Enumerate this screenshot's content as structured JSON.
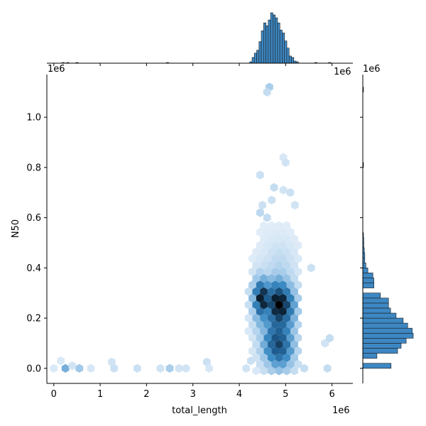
{
  "chart_data": {
    "type": "hexbin_joint",
    "xlabel": "total_length",
    "ylabel": "N50",
    "x_offset": "1e6",
    "y_offset": "1e6",
    "x_offset_top": "1e6",
    "x_offset_corner": "1e6",
    "xlim": [
      -0.15,
      6.45
    ],
    "ylim": [
      -0.06,
      1.17
    ],
    "x_ticks": [
      0,
      1,
      2,
      3,
      4,
      5,
      6
    ],
    "y_ticks": [
      0.0,
      0.2,
      0.4,
      0.6,
      0.8,
      1.0
    ],
    "x_tick_labels": [
      "0",
      "1",
      "2",
      "3",
      "4",
      "5",
      "6"
    ],
    "y_tick_labels": [
      "0.0",
      "0.2",
      "0.4",
      "0.6",
      "0.8",
      "1.0"
    ],
    "colors": {
      "bar": "#3d87c2",
      "bar_edge": "#1a1a1a",
      "hex_light": "#e8f1fa",
      "hex_mid": "#3a8ac4",
      "hex_dark": "#000000",
      "axis": "#000000"
    },
    "marginal_x_hist": {
      "bin_width": 0.05,
      "max_count": 70,
      "bins": [
        {
          "x": 0.2,
          "count": 1
        },
        {
          "x": 0.3,
          "count": 1
        },
        {
          "x": 0.5,
          "count": 1
        },
        {
          "x": 2.45,
          "count": 1
        },
        {
          "x": 4.25,
          "count": 2
        },
        {
          "x": 4.3,
          "count": 8
        },
        {
          "x": 4.35,
          "count": 14
        },
        {
          "x": 4.4,
          "count": 18
        },
        {
          "x": 4.45,
          "count": 30
        },
        {
          "x": 4.5,
          "count": 45
        },
        {
          "x": 4.55,
          "count": 56
        },
        {
          "x": 4.6,
          "count": 52
        },
        {
          "x": 4.65,
          "count": 60
        },
        {
          "x": 4.7,
          "count": 70
        },
        {
          "x": 4.75,
          "count": 67
        },
        {
          "x": 4.8,
          "count": 63
        },
        {
          "x": 4.85,
          "count": 56
        },
        {
          "x": 4.9,
          "count": 46
        },
        {
          "x": 4.95,
          "count": 42
        },
        {
          "x": 5.0,
          "count": 31
        },
        {
          "x": 5.05,
          "count": 21
        },
        {
          "x": 5.1,
          "count": 10
        },
        {
          "x": 5.15,
          "count": 8
        },
        {
          "x": 5.2,
          "count": 3
        },
        {
          "x": 5.25,
          "count": 2
        },
        {
          "x": 5.65,
          "count": 1
        },
        {
          "x": 5.95,
          "count": 1
        }
      ]
    },
    "marginal_y_hist": {
      "bin_width": 0.02,
      "max_count": 100,
      "bins": [
        {
          "y": 0.0,
          "count": 56
        },
        {
          "y": 0.04,
          "count": 28
        },
        {
          "y": 0.06,
          "count": 69
        },
        {
          "y": 0.08,
          "count": 76
        },
        {
          "y": 0.1,
          "count": 86
        },
        {
          "y": 0.12,
          "count": 100
        },
        {
          "y": 0.14,
          "count": 98
        },
        {
          "y": 0.16,
          "count": 89
        },
        {
          "y": 0.18,
          "count": 80
        },
        {
          "y": 0.2,
          "count": 66
        },
        {
          "y": 0.22,
          "count": 55
        },
        {
          "y": 0.24,
          "count": 51
        },
        {
          "y": 0.26,
          "count": 51
        },
        {
          "y": 0.28,
          "count": 35
        },
        {
          "y": 0.32,
          "count": 22
        },
        {
          "y": 0.34,
          "count": 22
        },
        {
          "y": 0.36,
          "count": 20
        },
        {
          "y": 0.38,
          "count": 10
        },
        {
          "y": 0.4,
          "count": 6
        },
        {
          "y": 0.42,
          "count": 4
        },
        {
          "y": 0.44,
          "count": 4
        },
        {
          "y": 0.46,
          "count": 3
        },
        {
          "y": 0.48,
          "count": 2
        },
        {
          "y": 0.5,
          "count": 2
        },
        {
          "y": 0.52,
          "count": 1
        },
        {
          "y": 0.8,
          "count": 1
        },
        {
          "y": 1.1,
          "count": 1
        }
      ]
    },
    "hexbins": [
      {
        "x": 0.0,
        "y": 0.0,
        "level": 0.05
      },
      {
        "x": 0.25,
        "y": 0.0,
        "level": 0.35
      },
      {
        "x": 0.55,
        "y": 0.0,
        "level": 0.25
      },
      {
        "x": 0.15,
        "y": 0.03,
        "level": 0.05
      },
      {
        "x": 0.4,
        "y": 0.01,
        "level": 0.08
      },
      {
        "x": 0.8,
        "y": 0.0,
        "level": 0.06
      },
      {
        "x": 1.3,
        "y": 0.0,
        "level": 0.1
      },
      {
        "x": 1.25,
        "y": 0.025,
        "level": 0.08
      },
      {
        "x": 1.8,
        "y": 0.0,
        "level": 0.1
      },
      {
        "x": 2.3,
        "y": 0.0,
        "level": 0.08
      },
      {
        "x": 2.5,
        "y": 0.0,
        "level": 0.22
      },
      {
        "x": 2.7,
        "y": 0.0,
        "level": 0.08
      },
      {
        "x": 2.85,
        "y": 0.0,
        "level": 0.08
      },
      {
        "x": 3.3,
        "y": 0.025,
        "level": 0.1
      },
      {
        "x": 3.35,
        "y": 0.0,
        "level": 0.06
      },
      {
        "x": 4.15,
        "y": 0.0,
        "level": 0.08
      },
      {
        "x": 4.25,
        "y": 0.03,
        "level": 0.1
      },
      {
        "x": 5.4,
        "y": 0.0,
        "level": 0.12
      },
      {
        "x": 5.9,
        "y": 0.0,
        "level": 0.12
      },
      {
        "x": 5.85,
        "y": 0.1,
        "level": 0.08
      },
      {
        "x": 5.95,
        "y": 0.12,
        "level": 0.12
      },
      {
        "x": 5.55,
        "y": 0.4,
        "level": 0.1
      },
      {
        "x": 4.65,
        "y": 1.12,
        "level": 0.22
      },
      {
        "x": 4.6,
        "y": 1.1,
        "level": 0.12
      },
      {
        "x": 4.95,
        "y": 0.84,
        "level": 0.06
      },
      {
        "x": 5.0,
        "y": 0.82,
        "level": 0.08
      },
      {
        "x": 4.45,
        "y": 0.77,
        "level": 0.1
      },
      {
        "x": 4.5,
        "y": 0.65,
        "level": 0.1
      },
      {
        "x": 4.75,
        "y": 0.72,
        "level": 0.12
      },
      {
        "x": 4.95,
        "y": 0.71,
        "level": 0.08
      },
      {
        "x": 5.1,
        "y": 0.7,
        "level": 0.1
      },
      {
        "x": 4.45,
        "y": 0.62,
        "level": 0.15
      },
      {
        "x": 4.7,
        "y": 0.67,
        "level": 0.1
      },
      {
        "x": 5.2,
        "y": 0.65,
        "level": 0.08
      },
      {
        "x": 4.6,
        "y": 0.6,
        "level": 0.12
      }
    ],
    "hex_core": {
      "x_min": 4.2,
      "x_max": 5.35,
      "y_min": -0.01,
      "y_max": 0.58,
      "peak_x": 4.85,
      "peak_y": 0.19,
      "peak2_x": 4.5,
      "peak2_y": 0.26
    }
  }
}
